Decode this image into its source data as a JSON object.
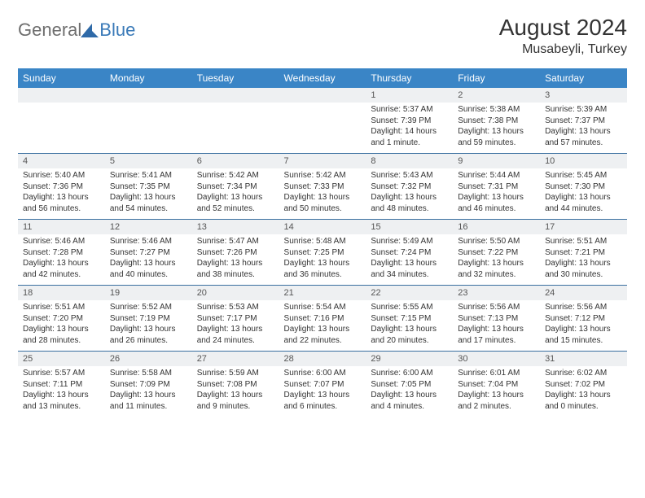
{
  "logo": {
    "part1": "General",
    "part2": "Blue"
  },
  "title": "August 2024",
  "location": "Musabeyli, Turkey",
  "colors": {
    "header_bg": "#3a85c6",
    "header_text": "#ffffff",
    "daynum_bg": "#eef0f2",
    "border": "#3a6fa0",
    "logo_gray": "#6e6e6e",
    "logo_blue": "#3a7ab8"
  },
  "day_headers": [
    "Sunday",
    "Monday",
    "Tuesday",
    "Wednesday",
    "Thursday",
    "Friday",
    "Saturday"
  ],
  "weeks": [
    [
      {
        "num": "",
        "sunrise": "",
        "sunset": "",
        "daylight": ""
      },
      {
        "num": "",
        "sunrise": "",
        "sunset": "",
        "daylight": ""
      },
      {
        "num": "",
        "sunrise": "",
        "sunset": "",
        "daylight": ""
      },
      {
        "num": "",
        "sunrise": "",
        "sunset": "",
        "daylight": ""
      },
      {
        "num": "1",
        "sunrise": "Sunrise: 5:37 AM",
        "sunset": "Sunset: 7:39 PM",
        "daylight": "Daylight: 14 hours and 1 minute."
      },
      {
        "num": "2",
        "sunrise": "Sunrise: 5:38 AM",
        "sunset": "Sunset: 7:38 PM",
        "daylight": "Daylight: 13 hours and 59 minutes."
      },
      {
        "num": "3",
        "sunrise": "Sunrise: 5:39 AM",
        "sunset": "Sunset: 7:37 PM",
        "daylight": "Daylight: 13 hours and 57 minutes."
      }
    ],
    [
      {
        "num": "4",
        "sunrise": "Sunrise: 5:40 AM",
        "sunset": "Sunset: 7:36 PM",
        "daylight": "Daylight: 13 hours and 56 minutes."
      },
      {
        "num": "5",
        "sunrise": "Sunrise: 5:41 AM",
        "sunset": "Sunset: 7:35 PM",
        "daylight": "Daylight: 13 hours and 54 minutes."
      },
      {
        "num": "6",
        "sunrise": "Sunrise: 5:42 AM",
        "sunset": "Sunset: 7:34 PM",
        "daylight": "Daylight: 13 hours and 52 minutes."
      },
      {
        "num": "7",
        "sunrise": "Sunrise: 5:42 AM",
        "sunset": "Sunset: 7:33 PM",
        "daylight": "Daylight: 13 hours and 50 minutes."
      },
      {
        "num": "8",
        "sunrise": "Sunrise: 5:43 AM",
        "sunset": "Sunset: 7:32 PM",
        "daylight": "Daylight: 13 hours and 48 minutes."
      },
      {
        "num": "9",
        "sunrise": "Sunrise: 5:44 AM",
        "sunset": "Sunset: 7:31 PM",
        "daylight": "Daylight: 13 hours and 46 minutes."
      },
      {
        "num": "10",
        "sunrise": "Sunrise: 5:45 AM",
        "sunset": "Sunset: 7:30 PM",
        "daylight": "Daylight: 13 hours and 44 minutes."
      }
    ],
    [
      {
        "num": "11",
        "sunrise": "Sunrise: 5:46 AM",
        "sunset": "Sunset: 7:28 PM",
        "daylight": "Daylight: 13 hours and 42 minutes."
      },
      {
        "num": "12",
        "sunrise": "Sunrise: 5:46 AM",
        "sunset": "Sunset: 7:27 PM",
        "daylight": "Daylight: 13 hours and 40 minutes."
      },
      {
        "num": "13",
        "sunrise": "Sunrise: 5:47 AM",
        "sunset": "Sunset: 7:26 PM",
        "daylight": "Daylight: 13 hours and 38 minutes."
      },
      {
        "num": "14",
        "sunrise": "Sunrise: 5:48 AM",
        "sunset": "Sunset: 7:25 PM",
        "daylight": "Daylight: 13 hours and 36 minutes."
      },
      {
        "num": "15",
        "sunrise": "Sunrise: 5:49 AM",
        "sunset": "Sunset: 7:24 PM",
        "daylight": "Daylight: 13 hours and 34 minutes."
      },
      {
        "num": "16",
        "sunrise": "Sunrise: 5:50 AM",
        "sunset": "Sunset: 7:22 PM",
        "daylight": "Daylight: 13 hours and 32 minutes."
      },
      {
        "num": "17",
        "sunrise": "Sunrise: 5:51 AM",
        "sunset": "Sunset: 7:21 PM",
        "daylight": "Daylight: 13 hours and 30 minutes."
      }
    ],
    [
      {
        "num": "18",
        "sunrise": "Sunrise: 5:51 AM",
        "sunset": "Sunset: 7:20 PM",
        "daylight": "Daylight: 13 hours and 28 minutes."
      },
      {
        "num": "19",
        "sunrise": "Sunrise: 5:52 AM",
        "sunset": "Sunset: 7:19 PM",
        "daylight": "Daylight: 13 hours and 26 minutes."
      },
      {
        "num": "20",
        "sunrise": "Sunrise: 5:53 AM",
        "sunset": "Sunset: 7:17 PM",
        "daylight": "Daylight: 13 hours and 24 minutes."
      },
      {
        "num": "21",
        "sunrise": "Sunrise: 5:54 AM",
        "sunset": "Sunset: 7:16 PM",
        "daylight": "Daylight: 13 hours and 22 minutes."
      },
      {
        "num": "22",
        "sunrise": "Sunrise: 5:55 AM",
        "sunset": "Sunset: 7:15 PM",
        "daylight": "Daylight: 13 hours and 20 minutes."
      },
      {
        "num": "23",
        "sunrise": "Sunrise: 5:56 AM",
        "sunset": "Sunset: 7:13 PM",
        "daylight": "Daylight: 13 hours and 17 minutes."
      },
      {
        "num": "24",
        "sunrise": "Sunrise: 5:56 AM",
        "sunset": "Sunset: 7:12 PM",
        "daylight": "Daylight: 13 hours and 15 minutes."
      }
    ],
    [
      {
        "num": "25",
        "sunrise": "Sunrise: 5:57 AM",
        "sunset": "Sunset: 7:11 PM",
        "daylight": "Daylight: 13 hours and 13 minutes."
      },
      {
        "num": "26",
        "sunrise": "Sunrise: 5:58 AM",
        "sunset": "Sunset: 7:09 PM",
        "daylight": "Daylight: 13 hours and 11 minutes."
      },
      {
        "num": "27",
        "sunrise": "Sunrise: 5:59 AM",
        "sunset": "Sunset: 7:08 PM",
        "daylight": "Daylight: 13 hours and 9 minutes."
      },
      {
        "num": "28",
        "sunrise": "Sunrise: 6:00 AM",
        "sunset": "Sunset: 7:07 PM",
        "daylight": "Daylight: 13 hours and 6 minutes."
      },
      {
        "num": "29",
        "sunrise": "Sunrise: 6:00 AM",
        "sunset": "Sunset: 7:05 PM",
        "daylight": "Daylight: 13 hours and 4 minutes."
      },
      {
        "num": "30",
        "sunrise": "Sunrise: 6:01 AM",
        "sunset": "Sunset: 7:04 PM",
        "daylight": "Daylight: 13 hours and 2 minutes."
      },
      {
        "num": "31",
        "sunrise": "Sunrise: 6:02 AM",
        "sunset": "Sunset: 7:02 PM",
        "daylight": "Daylight: 13 hours and 0 minutes."
      }
    ]
  ]
}
